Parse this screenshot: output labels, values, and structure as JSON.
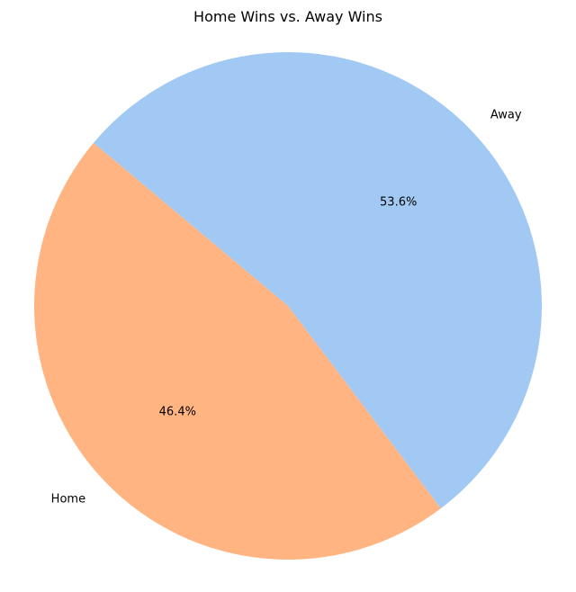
{
  "chart_data": {
    "type": "pie",
    "title": "Home Wins vs. Away Wins",
    "categories": [
      "Home",
      "Away"
    ],
    "values": [
      46.4,
      53.6
    ],
    "percent_labels": [
      "46.4%",
      "53.6%"
    ],
    "colors": [
      "#ffb482",
      "#a1c9f4"
    ],
    "start_angle_deg": 140,
    "direction": "counterclockwise",
    "legend": "none"
  }
}
